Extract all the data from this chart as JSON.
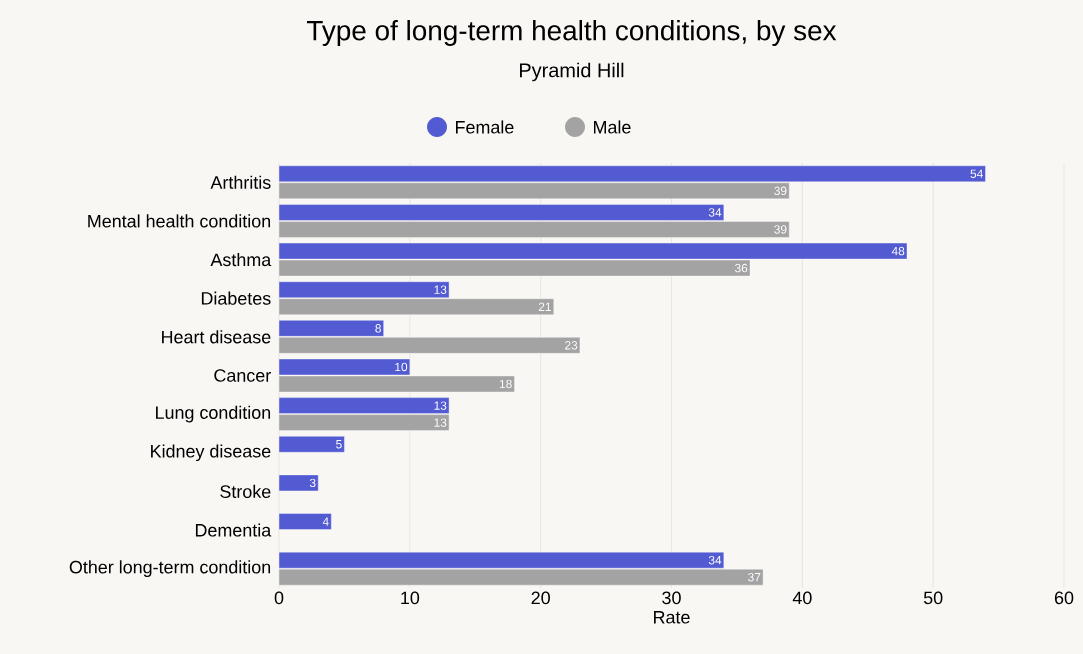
{
  "chart_data": {
    "type": "bar",
    "orientation": "horizontal",
    "title": "Type of long-term health conditions, by sex",
    "subtitle": "Pyramid Hill",
    "xlabel": "Rate",
    "categories": [
      "Arthritis",
      "Mental health condition",
      "Asthma",
      "Diabetes",
      "Heart disease",
      "Cancer",
      "Lung condition",
      "Kidney disease",
      "Stroke",
      "Dementia",
      "Other long-term condition"
    ],
    "series": [
      {
        "name": "Female",
        "color": "#535bd2",
        "values": [
          54,
          34,
          48,
          13,
          8,
          10,
          13,
          5,
          3,
          4,
          34
        ]
      },
      {
        "name": "Male",
        "color": "#a3a3a3",
        "values": [
          39,
          39,
          36,
          21,
          23,
          18,
          13,
          null,
          null,
          null,
          37
        ]
      }
    ],
    "xlim": [
      0,
      60
    ],
    "xticks": [
      0,
      10,
      20,
      30,
      40,
      50,
      60
    ],
    "grid": "x",
    "legend": "top",
    "data_labels": true
  }
}
